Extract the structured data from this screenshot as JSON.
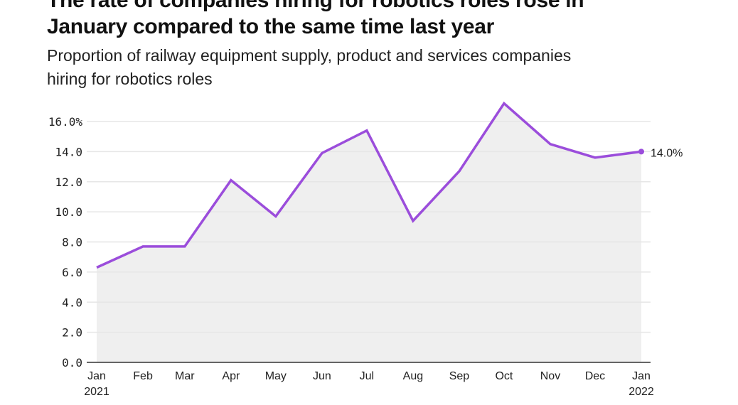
{
  "header": {
    "title_line1": "The rate of companies hiring for robotics roles rose in",
    "title_line2": "January compared to the same time last year",
    "subtitle_line1": "Proportion of railway equipment supply, product and services companies",
    "subtitle_line2": "hiring for robotics roles"
  },
  "chart_data": {
    "type": "area",
    "title": "The rate of companies hiring for robotics roles rose in January compared to the same time last year",
    "subtitle": "Proportion of railway equipment supply, product and services companies hiring for robotics roles",
    "x": [
      "2021-01",
      "2021-02",
      "2021-03",
      "2021-04",
      "2021-05",
      "2021-06",
      "2021-07",
      "2021-08",
      "2021-09",
      "2021-10",
      "2021-11",
      "2021-12",
      "2022-01"
    ],
    "x_tick_labels": [
      [
        "Jan",
        "2021"
      ],
      [
        "Feb"
      ],
      [
        "Mar"
      ],
      [
        "Apr"
      ],
      [
        "May"
      ],
      [
        "Jun"
      ],
      [
        "Jul"
      ],
      [
        "Aug"
      ],
      [
        "Sep"
      ],
      [
        "Oct"
      ],
      [
        "Nov"
      ],
      [
        "Dec"
      ],
      [
        "Jan",
        "2022"
      ]
    ],
    "values": [
      6.3,
      7.7,
      7.7,
      12.1,
      9.7,
      13.9,
      15.4,
      9.4,
      12.7,
      17.2,
      14.5,
      13.6,
      14.0
    ],
    "y_ticks": [
      0,
      2,
      4,
      6,
      8,
      10,
      12,
      14,
      16
    ],
    "y_tick_labels": [
      "0.0",
      "2.0",
      "4.0",
      "6.0",
      "8.0",
      "10.0",
      "12.0",
      "14.0",
      "16.0%"
    ],
    "ylim": [
      0,
      16
    ],
    "grid": true,
    "end_label": "14.0%",
    "colors": {
      "line": "#9b4ddb",
      "fill": "#efefef",
      "grid": "#e6e6e6",
      "axis": "#333333"
    }
  }
}
